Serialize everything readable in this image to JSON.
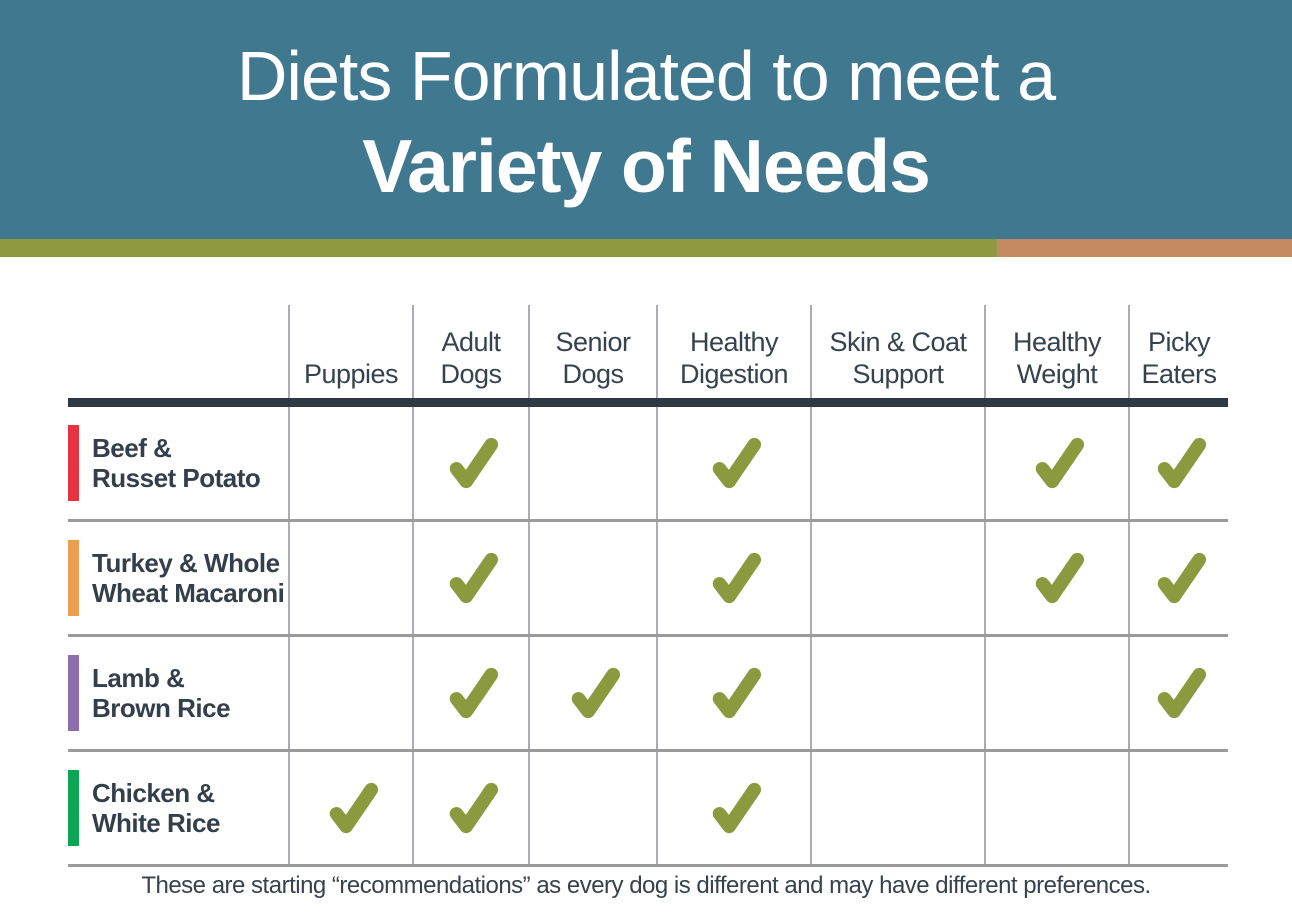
{
  "header": {
    "title_line1": "Diets Formulated to meet a",
    "title_line2": "Variety of Needs"
  },
  "colors": {
    "banner_blue": "#40798f",
    "stripe_olive": "#8d9a40",
    "stripe_terracotta": "#c68a63",
    "check_olive": "#8c9a3f",
    "header_rule_dark": "#2e3945",
    "row_line_gray": "#9b9b9b",
    "column_line_gray": "#a9aeb3",
    "text_slate": "#36424d"
  },
  "table": {
    "columns": [
      "Puppies",
      "Adult\nDogs",
      "Senior\nDogs",
      "Healthy\nDigestion",
      "Skin & Coat\nSupport",
      "Healthy\nWeight",
      "Picky\nEaters"
    ],
    "rows": [
      {
        "name": "Beef &\nRusset Potato",
        "bar_color": "#e73240",
        "checks": [
          false,
          true,
          false,
          true,
          false,
          true,
          true
        ]
      },
      {
        "name": "Turkey & Whole\nWheat Macaroni",
        "bar_color": "#eb9f4e",
        "checks": [
          false,
          true,
          false,
          true,
          false,
          true,
          true
        ]
      },
      {
        "name": "Lamb &\nBrown Rice",
        "bar_color": "#8e6fae",
        "checks": [
          false,
          true,
          true,
          true,
          false,
          false,
          true
        ]
      },
      {
        "name": "Chicken &\nWhite Rice",
        "bar_color": "#0ca551",
        "checks": [
          true,
          true,
          false,
          true,
          false,
          false,
          false
        ]
      }
    ],
    "check_icon": "check-icon"
  },
  "footer": {
    "note": "These are starting “recommendations” as every dog is different and may have different preferences."
  }
}
